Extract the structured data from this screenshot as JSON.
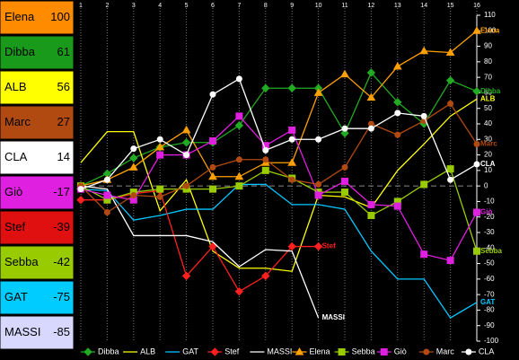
{
  "chart_data": {
    "type": "line",
    "x": [
      1,
      2,
      3,
      4,
      5,
      6,
      7,
      8,
      9,
      10,
      11,
      12,
      13,
      14,
      15,
      16
    ],
    "xticks": [
      1,
      2,
      3,
      4,
      5,
      6,
      7,
      8,
      9,
      10,
      11,
      12,
      13,
      14,
      15,
      16
    ],
    "xlim": [
      1,
      16
    ],
    "ylim": [
      -100,
      110
    ],
    "yticks": [
      -100,
      -90,
      -80,
      -70,
      -60,
      -50,
      -40,
      -30,
      -20,
      -10,
      0,
      10,
      20,
      30,
      40,
      50,
      60,
      70,
      80,
      90,
      100,
      110
    ],
    "grid": true,
    "legend": "bottom",
    "series": [
      {
        "name": "Dibba",
        "color": "#22aa22",
        "marker": "diamond",
        "values": [
          0,
          8,
          18,
          25,
          28,
          28,
          39,
          63,
          63,
          63,
          34,
          73,
          54,
          40,
          68,
          61
        ]
      },
      {
        "name": "ALB",
        "color": "#ffff00",
        "marker": "none",
        "values": [
          15,
          35,
          35,
          -16,
          4,
          -42,
          -53,
          -53,
          -55,
          -6,
          -7,
          -14,
          10,
          27,
          45,
          56
        ]
      },
      {
        "name": "GAT",
        "color": "#00c8ff",
        "marker": "none",
        "values": [
          -2,
          -3,
          -22,
          -19,
          -15,
          -15,
          1,
          1,
          -12,
          -12,
          -15,
          -42,
          -60,
          -60,
          -85,
          -75
        ]
      },
      {
        "name": "Stef",
        "color": "#ff2020",
        "marker": "diamond",
        "values": [
          -9,
          -9,
          -5,
          -3,
          -58,
          -39,
          -68,
          -58,
          -39,
          -39,
          null,
          null,
          null,
          null,
          null,
          null
        ]
      },
      {
        "name": "MASSI",
        "color": "#ffffff",
        "marker": "none",
        "values": [
          0,
          -2,
          -32,
          -32,
          -32,
          -36,
          -52,
          -41,
          -42,
          -85,
          null,
          null,
          null,
          null,
          null,
          null
        ]
      },
      {
        "name": "Elena",
        "color": "#ffa000",
        "marker": "triangle",
        "values": [
          0,
          4,
          12,
          25,
          36,
          6,
          6,
          15,
          15,
          60,
          72,
          57,
          77,
          87,
          86,
          100
        ]
      },
      {
        "name": "Sebba",
        "color": "#99cc00",
        "marker": "square",
        "values": [
          0,
          -9,
          -4,
          -2,
          -2,
          -2,
          0,
          10,
          5,
          -4,
          -4,
          -19,
          -10,
          1,
          11,
          -42
        ]
      },
      {
        "name": "Giò",
        "color": "#e020e0",
        "marker": "square",
        "values": [
          -2,
          -6,
          -9,
          20,
          20,
          29,
          45,
          26,
          36,
          -6,
          3,
          -12,
          -13,
          -44,
          -48,
          -17
        ]
      },
      {
        "name": "Marc",
        "color": "#b04a10",
        "marker": "circle",
        "values": [
          0,
          -17,
          -6,
          -7,
          0,
          12,
          17,
          17,
          4,
          1,
          12,
          40,
          33,
          42,
          53,
          27
        ]
      },
      {
        "name": "CLA",
        "color": "#ffffff",
        "marker": "circle",
        "values": [
          -2,
          4,
          24,
          30,
          20,
          59,
          69,
          23,
          30,
          30,
          37,
          37,
          47,
          45,
          4,
          14
        ]
      }
    ]
  },
  "scoreboard": [
    {
      "name": "Elena",
      "score": 100,
      "color": "#ff8c00"
    },
    {
      "name": "Dibba",
      "score": 61,
      "color": "#1a9a1a"
    },
    {
      "name": "ALB",
      "score": 56,
      "color": "#ffff00"
    },
    {
      "name": "Marc",
      "score": 27,
      "color": "#b04a10"
    },
    {
      "name": "CLA",
      "score": 14,
      "color": "#ffffff"
    },
    {
      "name": "Giò",
      "score": -17,
      "color": "#e020e0"
    },
    {
      "name": "Stef",
      "score": -39,
      "color": "#e01010"
    },
    {
      "name": "Sebba",
      "score": -42,
      "color": "#99cc00"
    },
    {
      "name": "GAT",
      "score": -75,
      "color": "#00ccff"
    },
    {
      "name": "MASSI",
      "score": -85,
      "color": "#d8d8ff"
    }
  ]
}
